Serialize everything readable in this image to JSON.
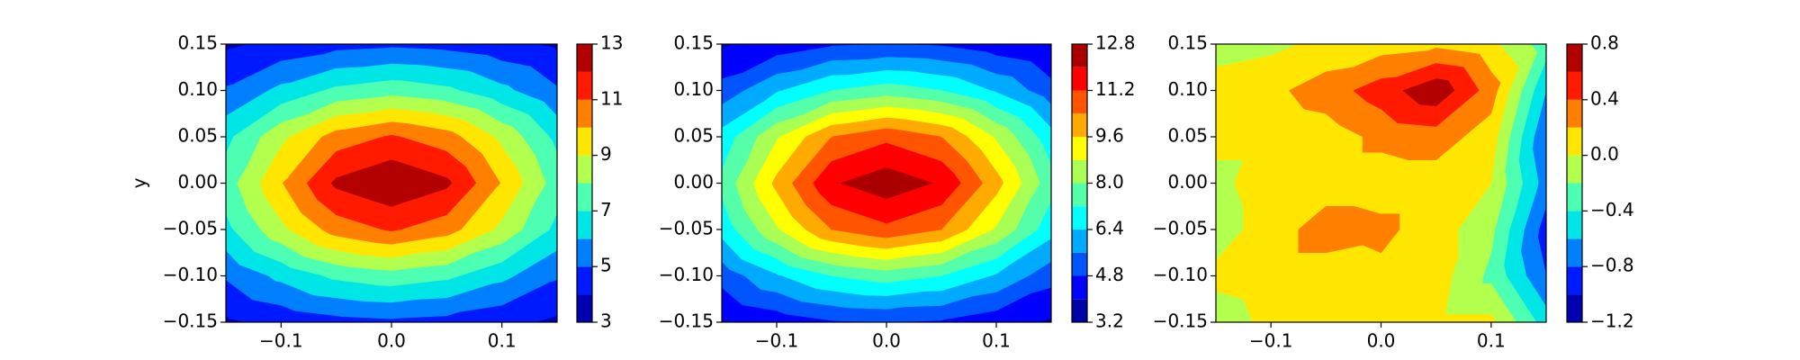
{
  "chart_data": [
    {
      "type": "contour",
      "ylabel": "y",
      "x": [
        -0.15,
        -0.1,
        -0.05,
        0,
        0.05,
        0.1,
        0.15
      ],
      "y": [
        -0.15,
        -0.1,
        -0.05,
        0,
        0.05,
        0.1,
        0.15
      ],
      "z": [
        [
          3.82,
          4.27,
          4.64,
          4.79,
          4.64,
          4.27,
          3.82
        ],
        [
          5.11,
          6.26,
          7.22,
          7.61,
          7.22,
          6.26,
          5.11
        ],
        [
          6.72,
          8.74,
          10.44,
          11.11,
          10.44,
          8.74,
          6.72
        ],
        [
          7.5,
          9.93,
          12.2,
          12.9,
          12.2,
          9.93,
          7.5
        ],
        [
          6.72,
          8.74,
          10.44,
          11.11,
          10.44,
          8.74,
          6.72
        ],
        [
          5.11,
          6.26,
          7.22,
          7.61,
          7.22,
          6.26,
          5.11
        ],
        [
          3.82,
          4.27,
          4.64,
          4.79,
          4.64,
          4.27,
          3.82
        ]
      ],
      "levels": [
        3,
        4,
        5,
        6,
        7,
        8,
        9,
        10,
        11,
        12,
        13
      ],
      "colors": [
        "#0000b3",
        "#001aff",
        "#0080ff",
        "#00e5e6",
        "#4dffb3",
        "#b3ff4d",
        "#ffe600",
        "#ff8000",
        "#ff1a00",
        "#b30000"
      ],
      "xlim": [
        -0.15,
        0.15
      ],
      "ylim": [
        -0.15,
        0.15
      ],
      "xticks": [
        {
          "value": -0.1,
          "label": "−0.1"
        },
        {
          "value": 0,
          "label": "0.0"
        },
        {
          "value": 0.1,
          "label": "0.1"
        }
      ],
      "yticks": [
        {
          "value": -0.15,
          "label": "−0.15"
        },
        {
          "value": -0.1,
          "label": "−0.10"
        },
        {
          "value": -0.05,
          "label": "−0.05"
        },
        {
          "value": 0,
          "label": "0.00"
        },
        {
          "value": 0.05,
          "label": "0.05"
        },
        {
          "value": 0.1,
          "label": "0.10"
        },
        {
          "value": 0.15,
          "label": "0.15"
        }
      ],
      "colorbar_ticks": [
        3,
        5,
        7,
        9,
        11,
        13
      ]
    },
    {
      "type": "contour",
      "x": [
        -0.15,
        -0.1,
        -0.05,
        0,
        0.05,
        0.1,
        0.15
      ],
      "y": [
        -0.15,
        -0.1,
        -0.05,
        0,
        0.05,
        0.1,
        0.15
      ],
      "z": [
        [
          3.9,
          4.3,
          4.7,
          4.8,
          4.7,
          4.3,
          3.9
        ],
        [
          5.1,
          6.3,
          7.2,
          7.6,
          7.2,
          6.3,
          5.1
        ],
        [
          6.7,
          8.7,
          10.4,
          11.0,
          10.4,
          8.7,
          6.7
        ],
        [
          7.4,
          9.8,
          11.9,
          12.5,
          11.9,
          9.9,
          7.5
        ],
        [
          6.7,
          8.7,
          10.4,
          11.0,
          10.4,
          8.7,
          6.7
        ],
        [
          5.1,
          6.3,
          7.2,
          7.6,
          7.2,
          6.3,
          5.1
        ],
        [
          3.9,
          4.3,
          4.7,
          4.8,
          4.7,
          4.3,
          3.9
        ]
      ],
      "levels": [
        3.2,
        4.0,
        4.8,
        5.6,
        6.4,
        7.2,
        8.0,
        8.8,
        9.6,
        10.4,
        11.2,
        12.0,
        12.8
      ],
      "colors": [
        "#0000aa",
        "#0000ff",
        "#0055ff",
        "#00aaff",
        "#00ffff",
        "#55ffaa",
        "#aaff55",
        "#ffff00",
        "#ffaa00",
        "#ff5500",
        "#ff0000",
        "#aa0000"
      ],
      "xlim": [
        -0.15,
        0.15
      ],
      "ylim": [
        -0.15,
        0.15
      ],
      "xticks": [
        {
          "value": -0.1,
          "label": "−0.1"
        },
        {
          "value": 0,
          "label": "0.0"
        },
        {
          "value": 0.1,
          "label": "0.1"
        }
      ],
      "yticks": [
        {
          "value": -0.15,
          "label": "−0.15"
        },
        {
          "value": -0.1,
          "label": "−0.10"
        },
        {
          "value": -0.05,
          "label": "−0.05"
        },
        {
          "value": 0,
          "label": "0.00"
        },
        {
          "value": 0.05,
          "label": "0.05"
        },
        {
          "value": 0.1,
          "label": "0.10"
        },
        {
          "value": 0.15,
          "label": "0.15"
        }
      ],
      "colorbar_ticks": [
        3.2,
        4.8,
        6.4,
        {
          "value": 8.0,
          "label": "8.0"
        },
        9.6,
        11.2,
        12.8
      ]
    },
    {
      "type": "contour",
      "x": [
        -0.15,
        -0.1,
        -0.05,
        0,
        0.05,
        0.1,
        0.15
      ],
      "y": [
        -0.15,
        -0.1,
        -0.05,
        0,
        0.05,
        0.1,
        0.15
      ],
      "z": [
        [
          -0.1,
          0.05,
          0.1,
          0.1,
          0.05,
          0.05,
          -0.5
        ],
        [
          0.05,
          0.1,
          0.1,
          0.15,
          0.1,
          -0.25,
          -0.8
        ],
        [
          -0.1,
          0.1,
          0.3,
          0.25,
          0.1,
          -0.15,
          -0.9
        ],
        [
          -0.05,
          0.1,
          0.1,
          0.1,
          0.1,
          0.0,
          -0.7
        ],
        [
          0.05,
          0.05,
          0.1,
          0.25,
          0.3,
          0.1,
          -0.8
        ],
        [
          0.1,
          0.15,
          0.3,
          0.5,
          0.75,
          0.3,
          -0.6
        ],
        [
          -0.1,
          -0.05,
          0.05,
          0.1,
          0.15,
          0.05,
          -0.3
        ]
      ],
      "levels": [
        -1.2,
        -1.0,
        -0.8,
        -0.6,
        -0.4,
        -0.2,
        0,
        0.2,
        0.4,
        0.6,
        0.8
      ],
      "colors": [
        "#0000b3",
        "#001aff",
        "#0080ff",
        "#00e5e6",
        "#4dffb3",
        "#b3ff4d",
        "#ffe600",
        "#ff8000",
        "#ff1a00",
        "#b30000"
      ],
      "xlim": [
        -0.15,
        0.15
      ],
      "ylim": [
        -0.15,
        0.15
      ],
      "xticks": [
        {
          "value": -0.1,
          "label": "−0.1"
        },
        {
          "value": 0,
          "label": "0.0"
        },
        {
          "value": 0.1,
          "label": "0.1"
        }
      ],
      "yticks": [
        {
          "value": -0.15,
          "label": "−0.15"
        },
        {
          "value": -0.1,
          "label": "−0.10"
        },
        {
          "value": -0.05,
          "label": "−0.05"
        },
        {
          "value": 0,
          "label": "0.00"
        },
        {
          "value": 0.05,
          "label": "0.05"
        },
        {
          "value": 0.1,
          "label": "0.10"
        },
        {
          "value": 0.15,
          "label": "0.15"
        }
      ],
      "colorbar_ticks": [
        {
          "value": -1.2,
          "label": "−1.2"
        },
        {
          "value": -0.8,
          "label": "−0.8"
        },
        {
          "value": -0.4,
          "label": "−0.4"
        },
        {
          "value": 0,
          "label": "0.0"
        },
        {
          "value": 0.4,
          "label": "0.4"
        },
        {
          "value": 0.8,
          "label": "0.8"
        }
      ]
    }
  ]
}
